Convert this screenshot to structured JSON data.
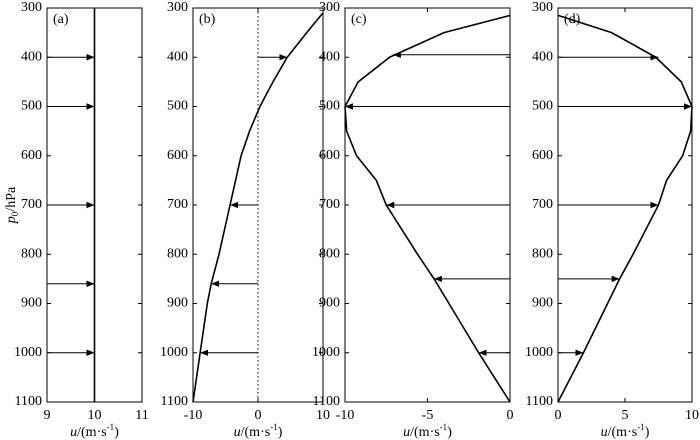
{
  "chart_data": [
    {
      "type": "profile",
      "panel_label": "(a)",
      "xlim": [
        9,
        11
      ],
      "xticks": [
        9,
        10,
        11
      ],
      "ylim": [
        1100,
        300
      ],
      "yticks": [
        300,
        400,
        500,
        600,
        700,
        800,
        900,
        1000,
        1100
      ],
      "xlabel": [
        "u",
        "/(m·s",
        "-1",
        ")"
      ],
      "ylabel": [
        "p",
        "0",
        "/hPa"
      ],
      "zero_line": false,
      "profile": {
        "p": [
          300,
          1100
        ],
        "u": [
          10,
          10
        ]
      },
      "arrows": {
        "p": [
          400,
          500,
          700,
          860,
          1000
        ],
        "u": [
          10,
          10,
          10,
          10,
          10
        ]
      }
    },
    {
      "type": "profile",
      "panel_label": "(b)",
      "xlim": [
        -10,
        10
      ],
      "xticks": [
        -10,
        0,
        10
      ],
      "ylim": [
        1100,
        300
      ],
      "yticks": [
        300,
        400,
        500,
        600,
        700,
        800,
        900,
        1000,
        1100
      ],
      "xlabel": [
        "u",
        "/(m·s",
        "-1",
        ")"
      ],
      "zero_line": true,
      "profile": {
        "p": [
          310,
          350,
          400,
          450,
          500,
          550,
          600,
          700,
          800,
          860,
          900,
          1000,
          1100
        ],
        "u": [
          10,
          7.5,
          4.5,
          2.3,
          0.3,
          -1.3,
          -2.6,
          -4.3,
          -6.0,
          -7.2,
          -7.8,
          -8.9,
          -10
        ]
      },
      "arrows": {
        "p": [
          400,
          700,
          860,
          1000
        ],
        "u": [
          4.5,
          -4.3,
          -7.2,
          -8.9
        ]
      }
    },
    {
      "type": "profile",
      "panel_label": "(c)",
      "xlim": [
        -10,
        0
      ],
      "xticks": [
        -10,
        -5,
        0
      ],
      "ylim": [
        1100,
        300
      ],
      "yticks": [
        300,
        400,
        500,
        600,
        700,
        800,
        900,
        1000,
        1100
      ],
      "xlabel": [
        "u",
        "/(m·s",
        "-1",
        ")"
      ],
      "zero_line": false,
      "profile": {
        "p": [
          315,
          350,
          400,
          450,
          500,
          550,
          600,
          650,
          700,
          800,
          850,
          900,
          1000,
          1100
        ],
        "u": [
          0,
          -4,
          -7.3,
          -9.2,
          -10,
          -9.9,
          -9.3,
          -8.1,
          -7.5,
          -5.6,
          -4.6,
          -3.7,
          -1.9,
          0
        ]
      },
      "arrows": {
        "p": [
          395,
          500,
          700,
          850,
          1000
        ],
        "u": [
          -7.1,
          -10,
          -7.5,
          -4.6,
          -1.9
        ]
      }
    },
    {
      "type": "profile",
      "panel_label": "(d)",
      "xlim": [
        0,
        10
      ],
      "xticks": [
        0,
        5,
        10
      ],
      "ylim": [
        1100,
        300
      ],
      "yticks": [
        300,
        400,
        500,
        600,
        700,
        800,
        900,
        1000,
        1100
      ],
      "xlabel": [
        "u",
        "/(m·s",
        "-1",
        ")"
      ],
      "zero_line": false,
      "profile": {
        "p": [
          315,
          350,
          400,
          450,
          500,
          550,
          600,
          650,
          700,
          800,
          850,
          900,
          1000,
          1100
        ],
        "u": [
          0,
          4,
          7.3,
          9.2,
          10,
          9.9,
          9.3,
          8.1,
          7.5,
          5.6,
          4.6,
          3.7,
          1.9,
          0
        ]
      },
      "arrows": {
        "p": [
          400,
          500,
          700,
          850,
          1000
        ],
        "u": [
          7.5,
          10,
          7.5,
          4.6,
          1.9
        ]
      }
    }
  ]
}
